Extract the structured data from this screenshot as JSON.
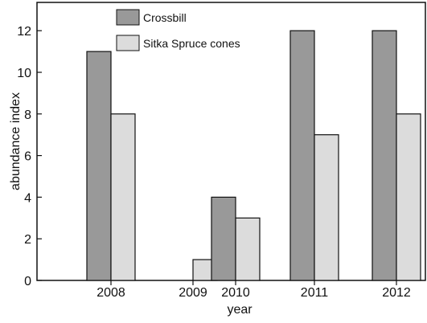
{
  "chart_data": {
    "type": "bar",
    "categories": [
      "2008",
      "2009",
      "2010",
      "2011",
      "2012"
    ],
    "series": [
      {
        "name": "Crossbill",
        "values": [
          11,
          0,
          4,
          12,
          12
        ],
        "color": "#999999"
      },
      {
        "name": "Sitka Spruce cones",
        "values": [
          8,
          1,
          3,
          7,
          8
        ],
        "color": "#dcdcdc"
      }
    ],
    "xlabel": "year",
    "ylabel": "abundance index",
    "ylim": [
      0,
      13
    ],
    "yticks": [
      0,
      2,
      4,
      6,
      8,
      10,
      12
    ],
    "grid": false,
    "legend_position": "top-left"
  }
}
